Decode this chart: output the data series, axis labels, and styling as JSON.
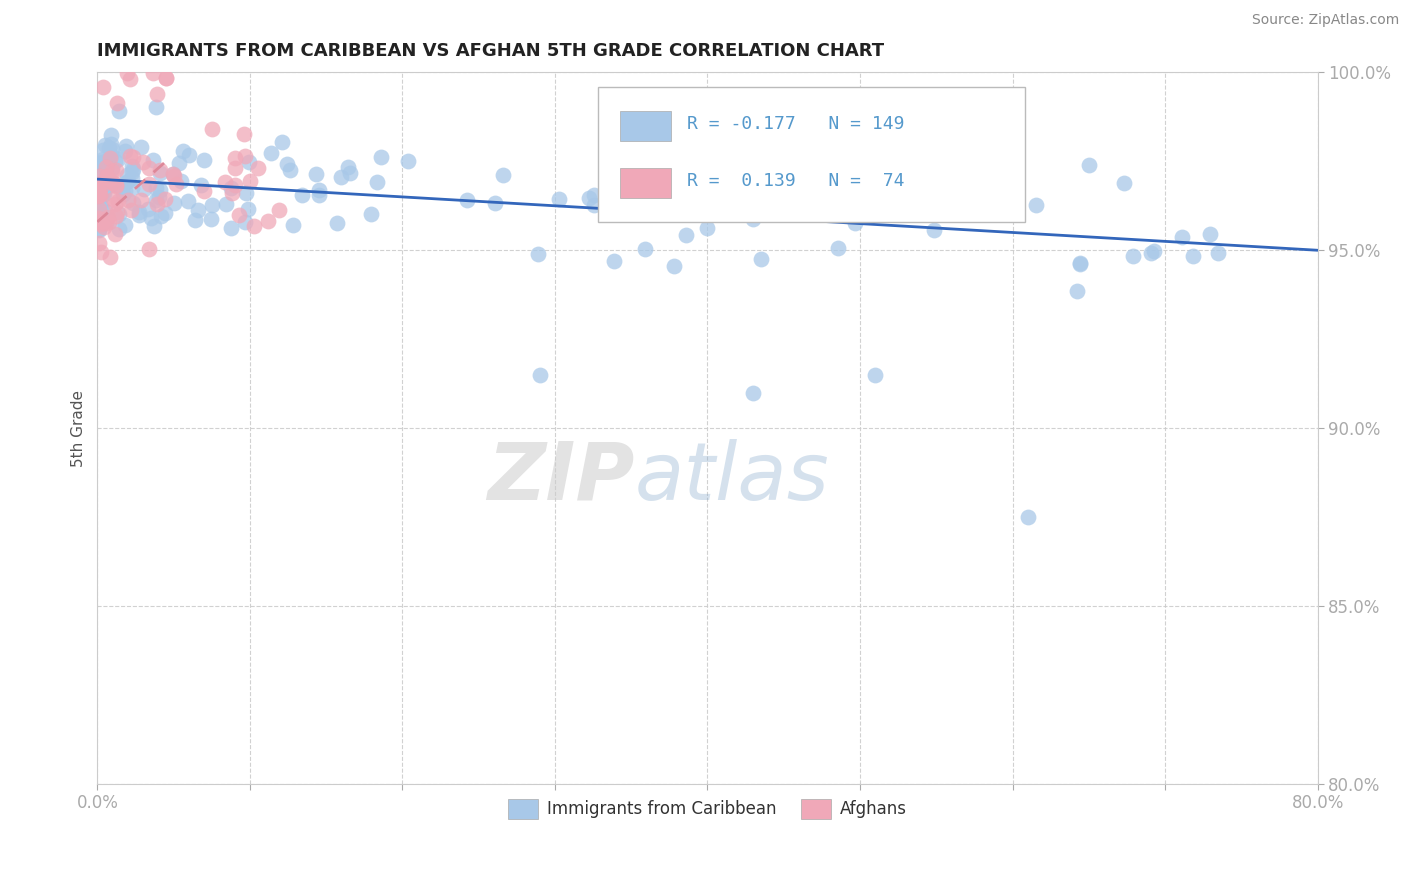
{
  "title": "IMMIGRANTS FROM CARIBBEAN VS AFGHAN 5TH GRADE CORRELATION CHART",
  "source": "Source: ZipAtlas.com",
  "ylabel": "5th Grade",
  "xlim": [
    0.0,
    80.0
  ],
  "ylim": [
    80.0,
    100.0
  ],
  "xticks": [
    0.0,
    10.0,
    20.0,
    30.0,
    40.0,
    50.0,
    60.0,
    70.0,
    80.0
  ],
  "yticks": [
    80.0,
    85.0,
    90.0,
    95.0,
    100.0
  ],
  "R_blue": -0.177,
  "N_blue": 149,
  "R_pink": 0.139,
  "N_pink": 74,
  "blue_color": "#a8c8e8",
  "pink_color": "#f0a8b8",
  "blue_line_color": "#3366bb",
  "pink_line_color": "#dd8899",
  "legend_blue_label": "Immigrants from Caribbean",
  "legend_pink_label": "Afghans",
  "blue_trend_x0": 0.0,
  "blue_trend_y0": 97.0,
  "blue_trend_x1": 80.0,
  "blue_trend_y1": 95.0,
  "pink_trend_x0": 0.0,
  "pink_trend_y0": 95.8,
  "pink_trend_x1": 4.5,
  "pink_trend_y1": 97.5,
  "watermark_zip_color": "#cccccc",
  "watermark_atlas_color": "#99bbdd",
  "title_fontsize": 13,
  "tick_color": "#5599cc",
  "ylabel_color": "#555555",
  "source_color": "#888888"
}
